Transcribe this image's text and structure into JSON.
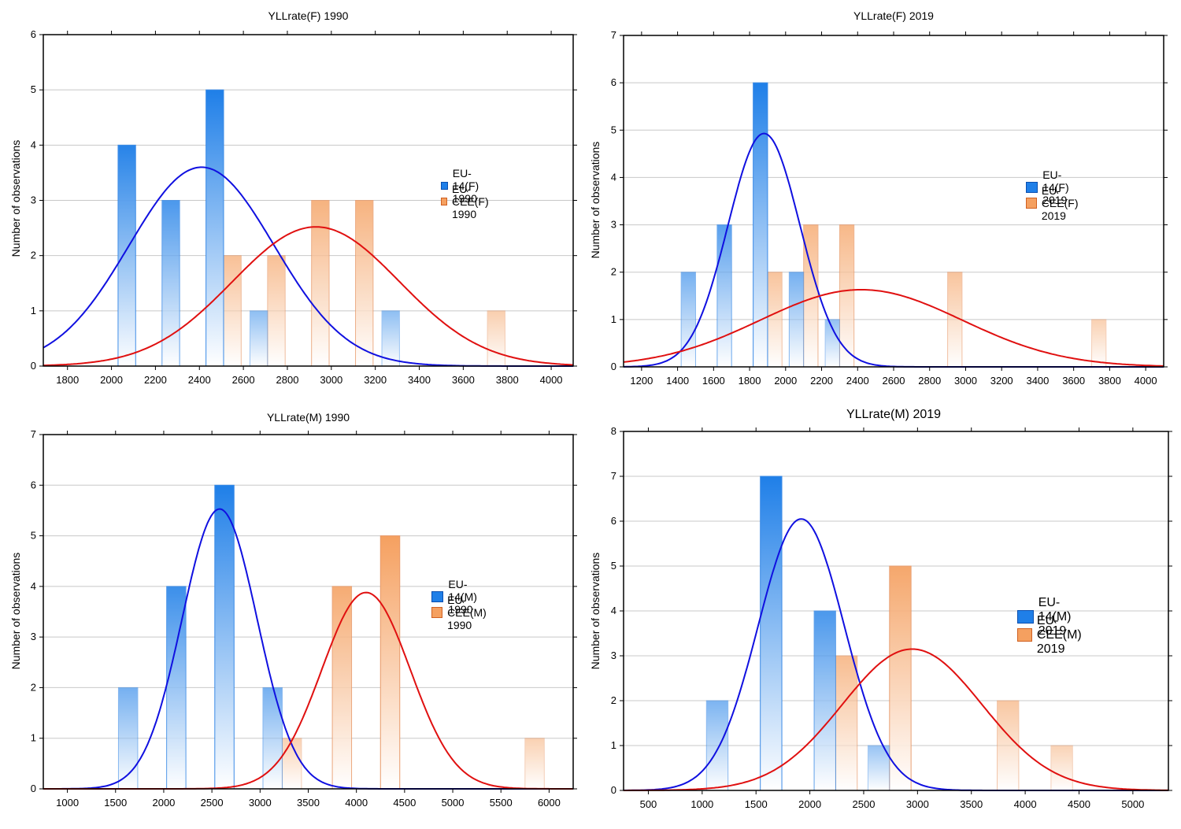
{
  "chart_data": [
    {
      "type": "bar",
      "title": "YLLrate(F) 1990",
      "ylabel": "Number of observations",
      "xlabel": "",
      "xlim": [
        1690,
        4100
      ],
      "ylim": [
        0,
        6
      ],
      "xticks": [
        1800,
        2000,
        2200,
        2400,
        2600,
        2800,
        3000,
        3200,
        3400,
        3600,
        3800,
        4000
      ],
      "yticks": [
        0,
        1,
        2,
        3,
        4,
        5,
        6
      ],
      "bar_width": 80,
      "grid": true,
      "legend_position": "right",
      "series": [
        {
          "name": "EU-14(F) 1990",
          "color": "#1f7fe8",
          "bars": [
            {
              "x": 2070,
              "y": 4
            },
            {
              "x": 2270,
              "y": 3
            },
            {
              "x": 2470,
              "y": 5
            },
            {
              "x": 2670,
              "y": 1
            },
            {
              "x": 3270,
              "y": 1
            }
          ],
          "curve": {
            "mean": 2410,
            "sd": 330,
            "peak": 3.6,
            "color": "#1010e0"
          }
        },
        {
          "name": "EU-CEE(F) 1990",
          "color": "#f5a060",
          "bars": [
            {
              "x": 2550,
              "y": 2
            },
            {
              "x": 2750,
              "y": 2
            },
            {
              "x": 2950,
              "y": 3
            },
            {
              "x": 3150,
              "y": 3
            },
            {
              "x": 3750,
              "y": 1
            }
          ],
          "curve": {
            "mean": 2930,
            "sd": 380,
            "peak": 2.52,
            "color": "#e01010"
          }
        }
      ]
    },
    {
      "type": "bar",
      "title": "YLLrate(F) 2019",
      "ylabel": "Number of observations",
      "xlabel": "",
      "xlim": [
        1100,
        4100
      ],
      "ylim": [
        0,
        7
      ],
      "xticks": [
        1200,
        1400,
        1600,
        1800,
        2000,
        2200,
        2400,
        2600,
        2800,
        3000,
        3200,
        3400,
        3600,
        3800,
        4000
      ],
      "yticks": [
        0,
        1,
        2,
        3,
        4,
        5,
        6,
        7
      ],
      "bar_width": 80,
      "grid": true,
      "legend_position": "right",
      "series": [
        {
          "name": "EU-14(F) 2019",
          "color": "#1f7fe8",
          "bars": [
            {
              "x": 1460,
              "y": 2
            },
            {
              "x": 1660,
              "y": 3
            },
            {
              "x": 1860,
              "y": 6
            },
            {
              "x": 2060,
              "y": 2
            },
            {
              "x": 2260,
              "y": 1
            }
          ],
          "curve": {
            "mean": 1880,
            "sd": 200,
            "peak": 4.93,
            "color": "#1010e0"
          }
        },
        {
          "name": "EU-CEE(F) 2019",
          "color": "#f5a060",
          "bars": [
            {
              "x": 1940,
              "y": 2
            },
            {
              "x": 2140,
              "y": 3
            },
            {
              "x": 2340,
              "y": 3
            },
            {
              "x": 2940,
              "y": 2
            },
            {
              "x": 3740,
              "y": 1
            }
          ],
          "curve": {
            "mean": 2420,
            "sd": 560,
            "peak": 1.63,
            "color": "#e01010"
          }
        }
      ]
    },
    {
      "type": "bar",
      "title": "YLLrate(M) 1990",
      "ylabel": "Number of observations",
      "xlabel": "",
      "xlim": [
        750,
        6250
      ],
      "ylim": [
        0,
        7
      ],
      "xticks": [
        1000,
        1500,
        2000,
        2500,
        3000,
        3500,
        4000,
        4500,
        5000,
        5500,
        6000
      ],
      "yticks": [
        0,
        1,
        2,
        3,
        4,
        5,
        6,
        7
      ],
      "bar_width": 200,
      "grid": true,
      "legend_position": "right",
      "series": [
        {
          "name": "EU-14(M) 1990",
          "color": "#1f7fe8",
          "bars": [
            {
              "x": 1630,
              "y": 2
            },
            {
              "x": 2130,
              "y": 4
            },
            {
              "x": 2630,
              "y": 6
            },
            {
              "x": 3130,
              "y": 2
            }
          ],
          "curve": {
            "mean": 2580,
            "sd": 390,
            "peak": 5.53,
            "color": "#1010e0"
          }
        },
        {
          "name": "EU-CEE(M) 1990",
          "color": "#f5a060",
          "bars": [
            {
              "x": 3330,
              "y": 1
            },
            {
              "x": 3850,
              "y": 4
            },
            {
              "x": 4350,
              "y": 5
            },
            {
              "x": 5850,
              "y": 1
            }
          ],
          "curve": {
            "mean": 4100,
            "sd": 460,
            "peak": 3.88,
            "color": "#e01010"
          }
        }
      ]
    },
    {
      "type": "bar",
      "title": "YLLrate(M) 2019",
      "ylabel": "Number of observations",
      "xlabel": "",
      "xlim": [
        270,
        5330
      ],
      "ylim": [
        0,
        8
      ],
      "xticks": [
        500,
        1000,
        1500,
        2000,
        2500,
        3000,
        3500,
        4000,
        4500,
        5000
      ],
      "yticks": [
        0,
        1,
        2,
        3,
        4,
        5,
        6,
        7,
        8
      ],
      "bar_width": 200,
      "grid": true,
      "legend_position": "right",
      "series": [
        {
          "name": "EU-14(M) 2019",
          "color": "#1f7fe8",
          "bars": [
            {
              "x": 1140,
              "y": 2
            },
            {
              "x": 1640,
              "y": 7
            },
            {
              "x": 2140,
              "y": 4
            },
            {
              "x": 2640,
              "y": 1
            }
          ],
          "curve": {
            "mean": 1920,
            "sd": 400,
            "peak": 6.05,
            "color": "#1010e0"
          }
        },
        {
          "name": "EU-CEE(M) 2019",
          "color": "#f5a060",
          "bars": [
            {
              "x": 2340,
              "y": 3
            },
            {
              "x": 2840,
              "y": 5
            },
            {
              "x": 3840,
              "y": 2
            },
            {
              "x": 4340,
              "y": 1
            }
          ],
          "curve": {
            "mean": 2950,
            "sd": 650,
            "peak": 3.15,
            "color": "#e01010"
          }
        }
      ]
    }
  ]
}
